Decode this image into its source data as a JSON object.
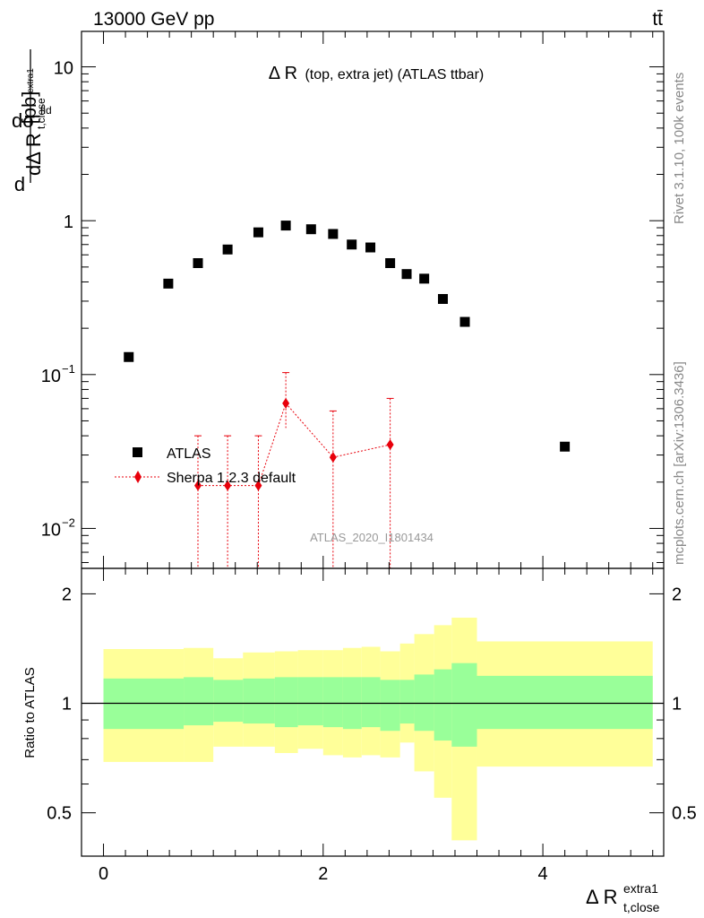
{
  "header": {
    "energy": "13000 GeV pp",
    "process": "tt̄"
  },
  "side": {
    "rivet": "Rivet 3.1.10,  100k events",
    "mcplots": "mcplots.cern.ch [arXiv:1306.3436]"
  },
  "main": {
    "title_main": "Δ R",
    "title_rest": "(top, extra jet) (ATLAS ttbar)",
    "ylabel_unit": "[pb]",
    "watermark": "ATLAS_2020_I1801434"
  },
  "ratio": {
    "ylabel": "Ratio to ATLAS"
  },
  "colors": {
    "data": "#000000",
    "mc": "#e8000b",
    "band_inner": "#99ff99",
    "band_outer": "#ffff99"
  },
  "chart_data": [
    {
      "type": "scatter",
      "title": "Δ R (top, extra jet) (ATLAS ttbar)",
      "xlabel": "Δ R_t,close^extra1",
      "ylabel": "dσ^fid / dΔ R_t,close^extra1 [pb]",
      "xlim": [
        -0.2,
        5.1
      ],
      "ylim": [
        0.0055,
        17
      ],
      "log_y": true,
      "legend_position": "lower-left",
      "x_ticks": [
        "0",
        "2",
        "4"
      ],
      "y_ticks": [
        "10^-2",
        "10^-1",
        "1",
        "10"
      ],
      "series": [
        {
          "name": "ATLAS",
          "marker": "square",
          "x": [
            0.23,
            0.59,
            0.86,
            1.13,
            1.41,
            1.66,
            1.89,
            2.09,
            2.26,
            2.43,
            2.61,
            2.76,
            2.92,
            3.09,
            3.29,
            4.2
          ],
          "y": [
            0.13,
            0.39,
            0.53,
            0.65,
            0.84,
            0.93,
            0.88,
            0.82,
            0.7,
            0.67,
            0.53,
            0.45,
            0.42,
            0.31,
            0.22,
            0.034
          ]
        },
        {
          "name": "Sherpa 1.2.3 default",
          "marker": "diamond",
          "x": [
            0.86,
            1.13,
            1.41,
            1.66,
            2.09,
            2.61
          ],
          "y": [
            0.019,
            0.019,
            0.019,
            0.065,
            0.029,
            0.035
          ],
          "y_err_up": [
            0.04,
            0.04,
            0.04,
            0.103,
            0.058,
            0.07
          ],
          "y_err_down": [
            0.001,
            0.001,
            0.001,
            0.045,
            0.001,
            0.001
          ]
        }
      ]
    },
    {
      "type": "area",
      "ylabel": "Ratio to ATLAS",
      "xlim": [
        -0.2,
        5.1
      ],
      "ylim": [
        0.38,
        2.35
      ],
      "x_ticks": [
        "0",
        "2",
        "4"
      ],
      "y_ticks": [
        "0.5",
        "1",
        "2"
      ],
      "reference_line": 1,
      "bins": [
        0.0,
        0.73,
        1.0,
        1.27,
        1.56,
        1.77,
        2.0,
        2.18,
        2.35,
        2.52,
        2.7,
        2.83,
        3.01,
        3.17,
        3.4,
        5.0
      ],
      "outer_lo": [
        0.69,
        0.69,
        0.76,
        0.76,
        0.73,
        0.75,
        0.72,
        0.71,
        0.72,
        0.71,
        0.78,
        0.65,
        0.55,
        0.42,
        0.67
      ],
      "outer_hi": [
        1.41,
        1.42,
        1.33,
        1.38,
        1.39,
        1.4,
        1.4,
        1.42,
        1.43,
        1.39,
        1.46,
        1.55,
        1.64,
        1.72,
        1.48
      ],
      "inner_lo": [
        0.85,
        0.87,
        0.89,
        0.88,
        0.86,
        0.87,
        0.86,
        0.85,
        0.86,
        0.84,
        0.88,
        0.84,
        0.79,
        0.76,
        0.85
      ],
      "inner_hi": [
        1.17,
        1.18,
        1.16,
        1.17,
        1.18,
        1.18,
        1.18,
        1.18,
        1.18,
        1.16,
        1.16,
        1.2,
        1.24,
        1.29,
        1.19
      ]
    }
  ]
}
